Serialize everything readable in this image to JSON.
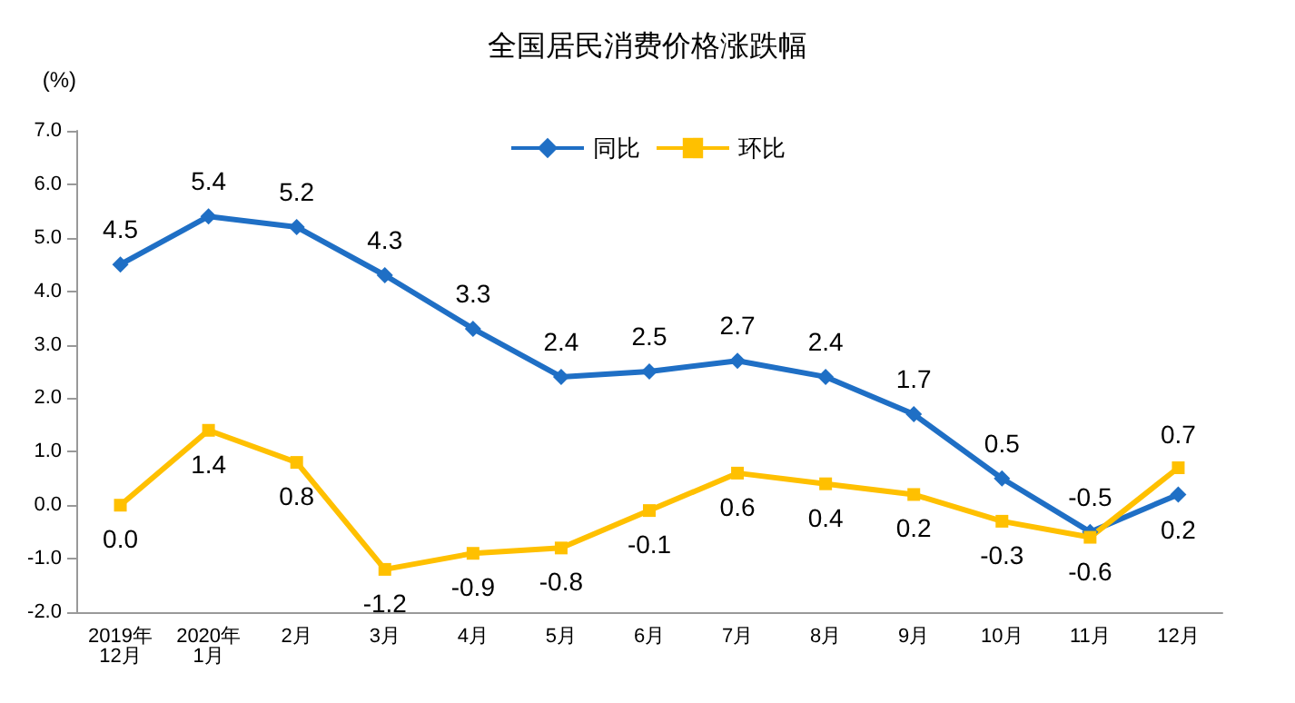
{
  "chart_data": {
    "type": "line",
    "title": "全国居民消费价格涨跌幅",
    "ylabel": "(%)",
    "categories": [
      "2019年\n12月",
      "2020年\n1月",
      "2月",
      "3月",
      "4月",
      "5月",
      "6月",
      "7月",
      "8月",
      "9月",
      "10月",
      "11月",
      "12月"
    ],
    "series": [
      {
        "name": "同比",
        "color": "#1f6fc5",
        "marker": "diamond",
        "values": [
          4.5,
          5.4,
          5.2,
          4.3,
          3.3,
          2.4,
          2.5,
          2.7,
          2.4,
          1.7,
          0.5,
          -0.5,
          0.2
        ],
        "value_labels": [
          "4.5",
          "5.4",
          "5.2",
          "4.3",
          "3.3",
          "2.4",
          "2.5",
          "2.7",
          "2.4",
          "1.7",
          "0.5",
          "-0.5",
          "0.2"
        ]
      },
      {
        "name": "环比",
        "color": "#ffc000",
        "marker": "square",
        "values": [
          0.0,
          1.4,
          0.8,
          -1.2,
          -0.9,
          -0.8,
          -0.1,
          0.6,
          0.4,
          0.2,
          -0.3,
          -0.6,
          0.7
        ],
        "value_labels": [
          "0.0",
          "1.4",
          "0.8",
          "-1.2",
          "-0.9",
          "-0.8",
          "-0.1",
          "0.6",
          "0.4",
          "0.2",
          "-0.3",
          "-0.6",
          "0.7"
        ]
      }
    ],
    "ylim": [
      -2,
      7
    ],
    "yticks": [
      {
        "value": -2,
        "label": "-2.0"
      },
      {
        "value": -1,
        "label": "-1.0"
      },
      {
        "value": 0,
        "label": "0.0"
      },
      {
        "value": 1,
        "label": "1.0"
      },
      {
        "value": 2,
        "label": "2.0"
      },
      {
        "value": 3,
        "label": "3.0"
      },
      {
        "value": 4,
        "label": "4.0"
      },
      {
        "value": 5,
        "label": "5.0"
      },
      {
        "value": 6,
        "label": "6.0"
      },
      {
        "value": 7,
        "label": "7.0"
      }
    ],
    "legend": "top",
    "line_style": "solid"
  }
}
